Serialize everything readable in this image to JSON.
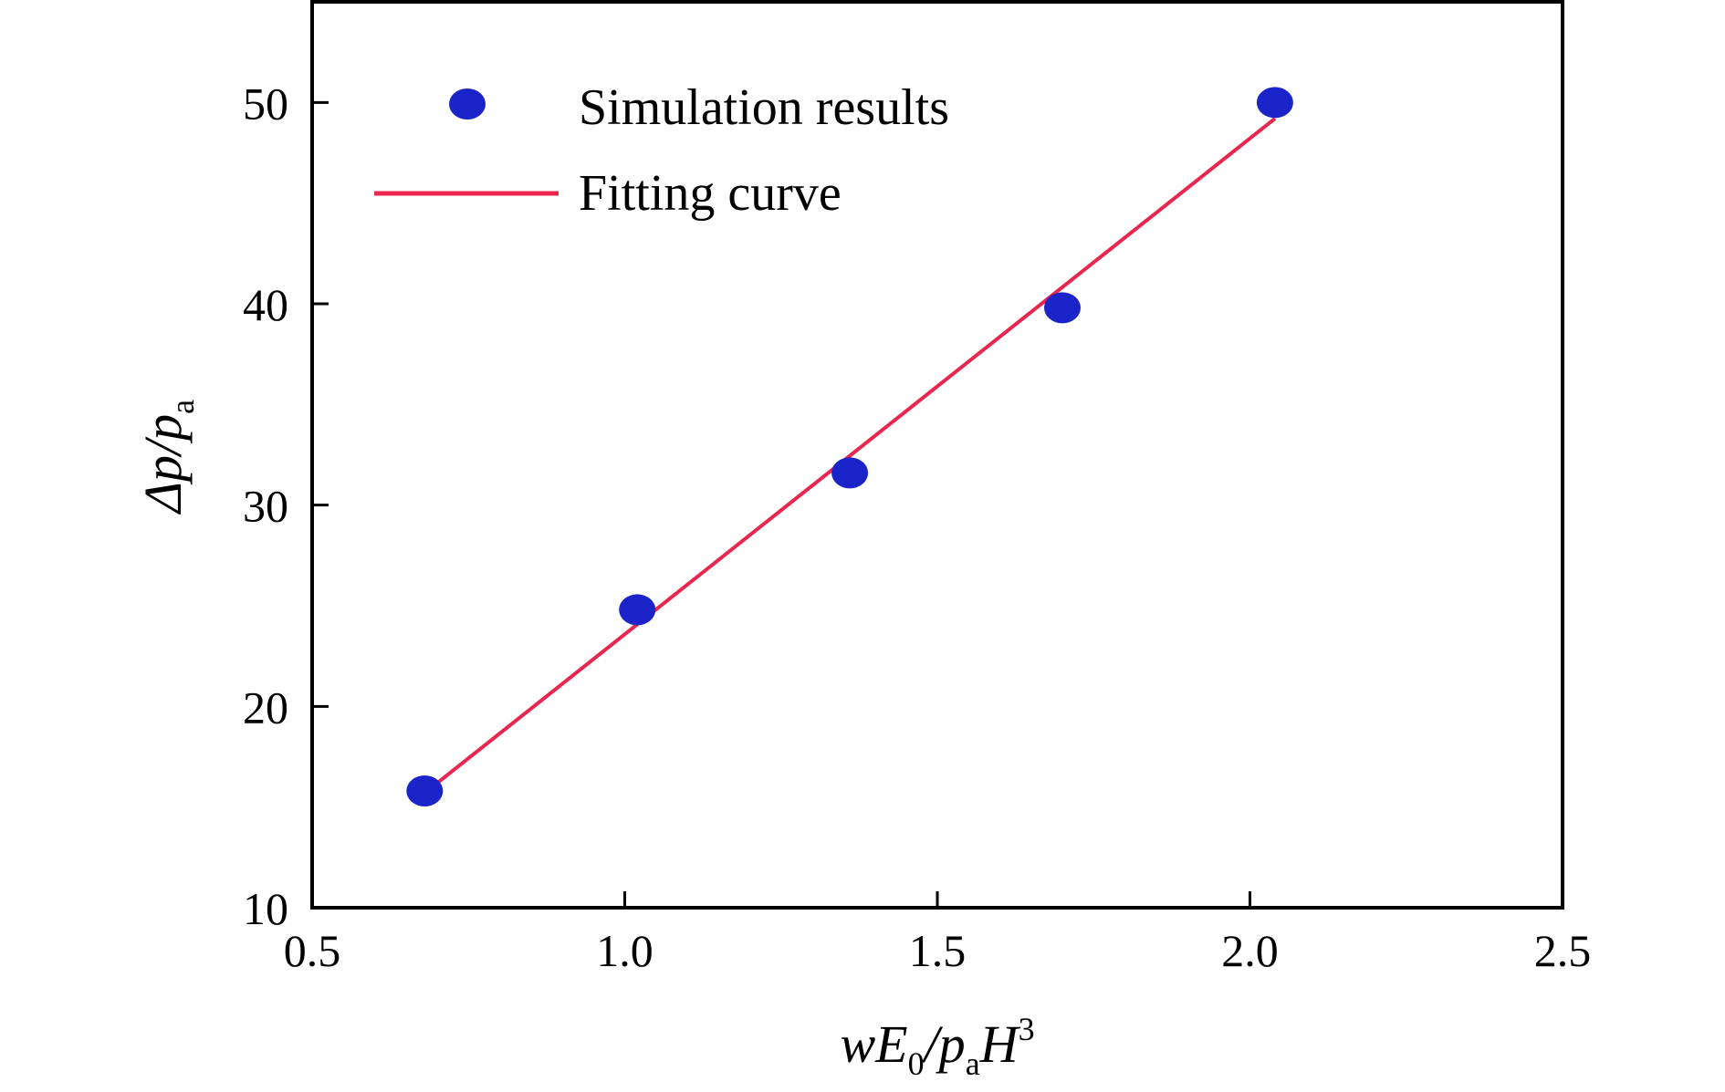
{
  "chart_data": {
    "type": "scatter",
    "xlabel": {
      "prefix": "wE",
      "sub1": "0",
      "mid": "/p",
      "sub2": "a",
      "suffix": "H",
      "sup": "3"
    },
    "ylabel": {
      "prefix": "Δp/p",
      "sub": "a"
    },
    "xlim": [
      0.5,
      2.5
    ],
    "ylim": [
      10,
      55
    ],
    "xticks": [
      {
        "value": 0.5,
        "label": "0.5"
      },
      {
        "value": 1.0,
        "label": "1.0"
      },
      {
        "value": 1.5,
        "label": "1.5"
      },
      {
        "value": 2.0,
        "label": "2.0"
      },
      {
        "value": 2.5,
        "label": "2.5"
      }
    ],
    "yticks": [
      {
        "value": 10,
        "label": "10"
      },
      {
        "value": 20,
        "label": "20"
      },
      {
        "value": 30,
        "label": "30"
      },
      {
        "value": 40,
        "label": "40"
      },
      {
        "value": 50,
        "label": "50"
      }
    ],
    "grid": false,
    "legend_position": "top-left",
    "series": [
      {
        "name": "Simulation results",
        "kind": "scatter",
        "color": "#1a24c8",
        "x": [
          0.68,
          1.02,
          1.36,
          1.7,
          2.04
        ],
        "y": [
          15.8,
          24.8,
          31.6,
          39.8,
          50.0
        ]
      },
      {
        "name": "Fitting curve",
        "kind": "line",
        "color": "#e8264e",
        "x": [
          0.68,
          2.04
        ],
        "y": [
          15.7,
          49.2
        ]
      }
    ]
  }
}
